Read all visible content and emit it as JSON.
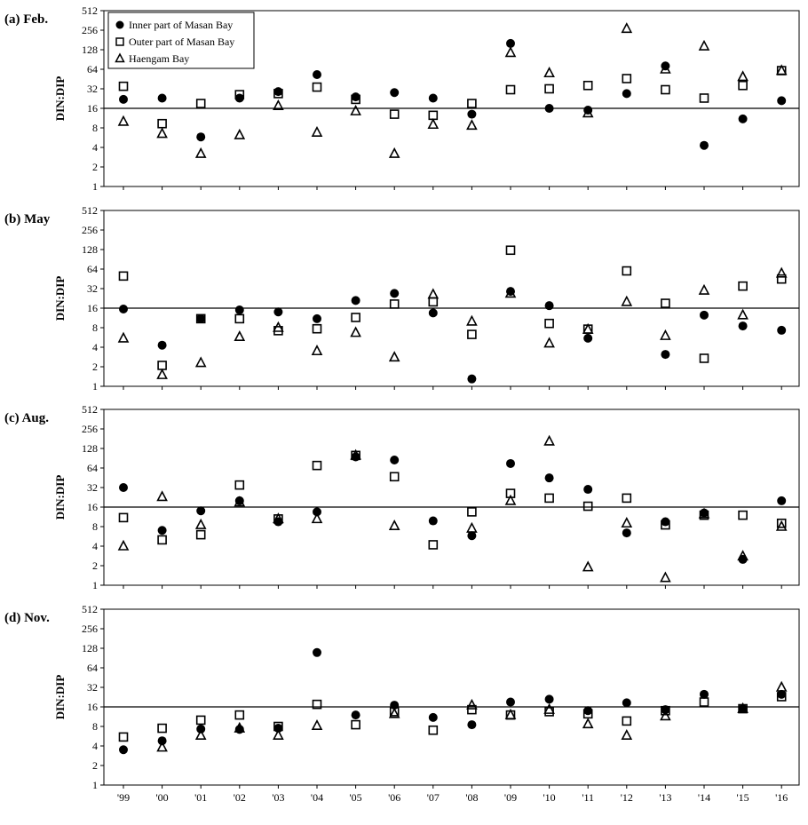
{
  "chart_data": {
    "type": "scatter",
    "y_scale": "log2",
    "ylim": [
      1,
      512
    ],
    "yticks": [
      "1",
      "2",
      "4",
      "8",
      "16",
      "32",
      "64",
      "128",
      "256",
      "512"
    ],
    "reference_line": 16,
    "x_categories": [
      "'99",
      "'00",
      "'01",
      "'02",
      "'03",
      "'04",
      "'05",
      "'06",
      "'07",
      "'08",
      "'09",
      "'10",
      "'11",
      "'12",
      "'13",
      "'14",
      "'15",
      "'16"
    ],
    "legend": {
      "placement": "top-left",
      "entries": [
        {
          "name": "Inner part of Masan Bay",
          "marker": "filled-circle"
        },
        {
          "name": "Outer part of Masan Bay",
          "marker": "open-square"
        },
        {
          "name": "Haengam Bay",
          "marker": "open-triangle"
        }
      ]
    },
    "panels": [
      {
        "label": "(a) Feb.",
        "ylabel": "DIN:DIP",
        "series": [
          {
            "name": "Inner part of Masan Bay",
            "values": [
              22,
              23,
              5.8,
              23,
              29,
              53,
              24,
              28,
              23,
              13,
              160,
              16,
              15,
              27,
              72,
              4.3,
              11,
              21
            ]
          },
          {
            "name": "Outer part of Masan Bay",
            "values": [
              35,
              9.3,
              19,
              26,
              27,
              34,
              22,
              13,
              12.5,
              19,
              31,
              32,
              36,
              46,
              31,
              23,
              36,
              61
            ]
          },
          {
            "name": "Haengam Bay",
            "values": [
              10,
              6.5,
              3.2,
              6.2,
              17.5,
              6.8,
              14.5,
              3.2,
              9,
              8.7,
              115,
              56,
              13.5,
              270,
              64,
              145,
              49,
              61
            ]
          }
        ]
      },
      {
        "label": "(b) May",
        "ylabel": "DIN:DIP",
        "series": [
          {
            "name": "Inner part of Masan Bay",
            "values": [
              15.5,
              4.3,
              11,
              15,
              14,
              11,
              21,
              27,
              13.5,
              1.3,
              29,
              17.5,
              5.5,
              null,
              3.1,
              12.5,
              8.5,
              7.3
            ]
          },
          {
            "name": "Outer part of Masan Bay",
            "values": [
              50,
              2.1,
              11,
              11,
              7.2,
              7.7,
              11.5,
              18.5,
              20,
              6.3,
              125,
              9.3,
              7.6,
              60,
              19,
              2.7,
              35,
              45
            ]
          },
          {
            "name": "Haengam Bay",
            "values": [
              5.5,
              1.5,
              2.3,
              5.8,
              8,
              3.5,
              6.7,
              2.8,
              26,
              10,
              27,
              4.6,
              7.5,
              20,
              6,
              30,
              12.5,
              55
            ]
          }
        ]
      },
      {
        "label": "(c) Aug.",
        "ylabel": "DIN:DIP",
        "series": [
          {
            "name": "Inner part of Masan Bay",
            "values": [
              32,
              7,
              14,
              20,
              9.5,
              13.5,
              95,
              85,
              9.8,
              5.8,
              75,
              45,
              30,
              6.4,
              9.5,
              13,
              2.5,
              20
            ]
          },
          {
            "name": "Outer part of Masan Bay",
            "values": [
              11,
              5,
              6,
              35,
              10.5,
              70,
              100,
              47,
              4.2,
              13.5,
              26,
              22,
              16.5,
              22,
              8.5,
              12,
              12,
              9
            ]
          },
          {
            "name": "Haengam Bay",
            "values": [
              4,
              23,
              8.5,
              19,
              10.5,
              10.5,
              100,
              8.2,
              null,
              7.5,
              20,
              165,
              1.9,
              9,
              1.3,
              12.5,
              2.8,
              8
            ]
          }
        ]
      },
      {
        "label": "(d) Nov.",
        "ylabel": "DIN:DIP",
        "series": [
          {
            "name": "Inner part of Masan Bay",
            "values": [
              3.5,
              4.8,
              7.3,
              7.2,
              7.5,
              110,
              12,
              17,
              11,
              8.5,
              19,
              21,
              14,
              18.5,
              14.5,
              25,
              15,
              25
            ]
          },
          {
            "name": "Outer part of Masan Bay",
            "values": [
              5.5,
              7.5,
              10,
              12,
              8,
              17.5,
              8.5,
              13.5,
              7,
              14.5,
              12,
              13.5,
              12.5,
              9.7,
              14,
              19,
              15,
              23
            ]
          },
          {
            "name": "Haengam Bay",
            "values": [
              null,
              3.8,
              5.8,
              7.5,
              5.8,
              8.2,
              null,
              12.5,
              null,
              17,
              12,
              14.5,
              8.7,
              5.8,
              11.5,
              null,
              15,
              32
            ]
          }
        ]
      }
    ]
  }
}
